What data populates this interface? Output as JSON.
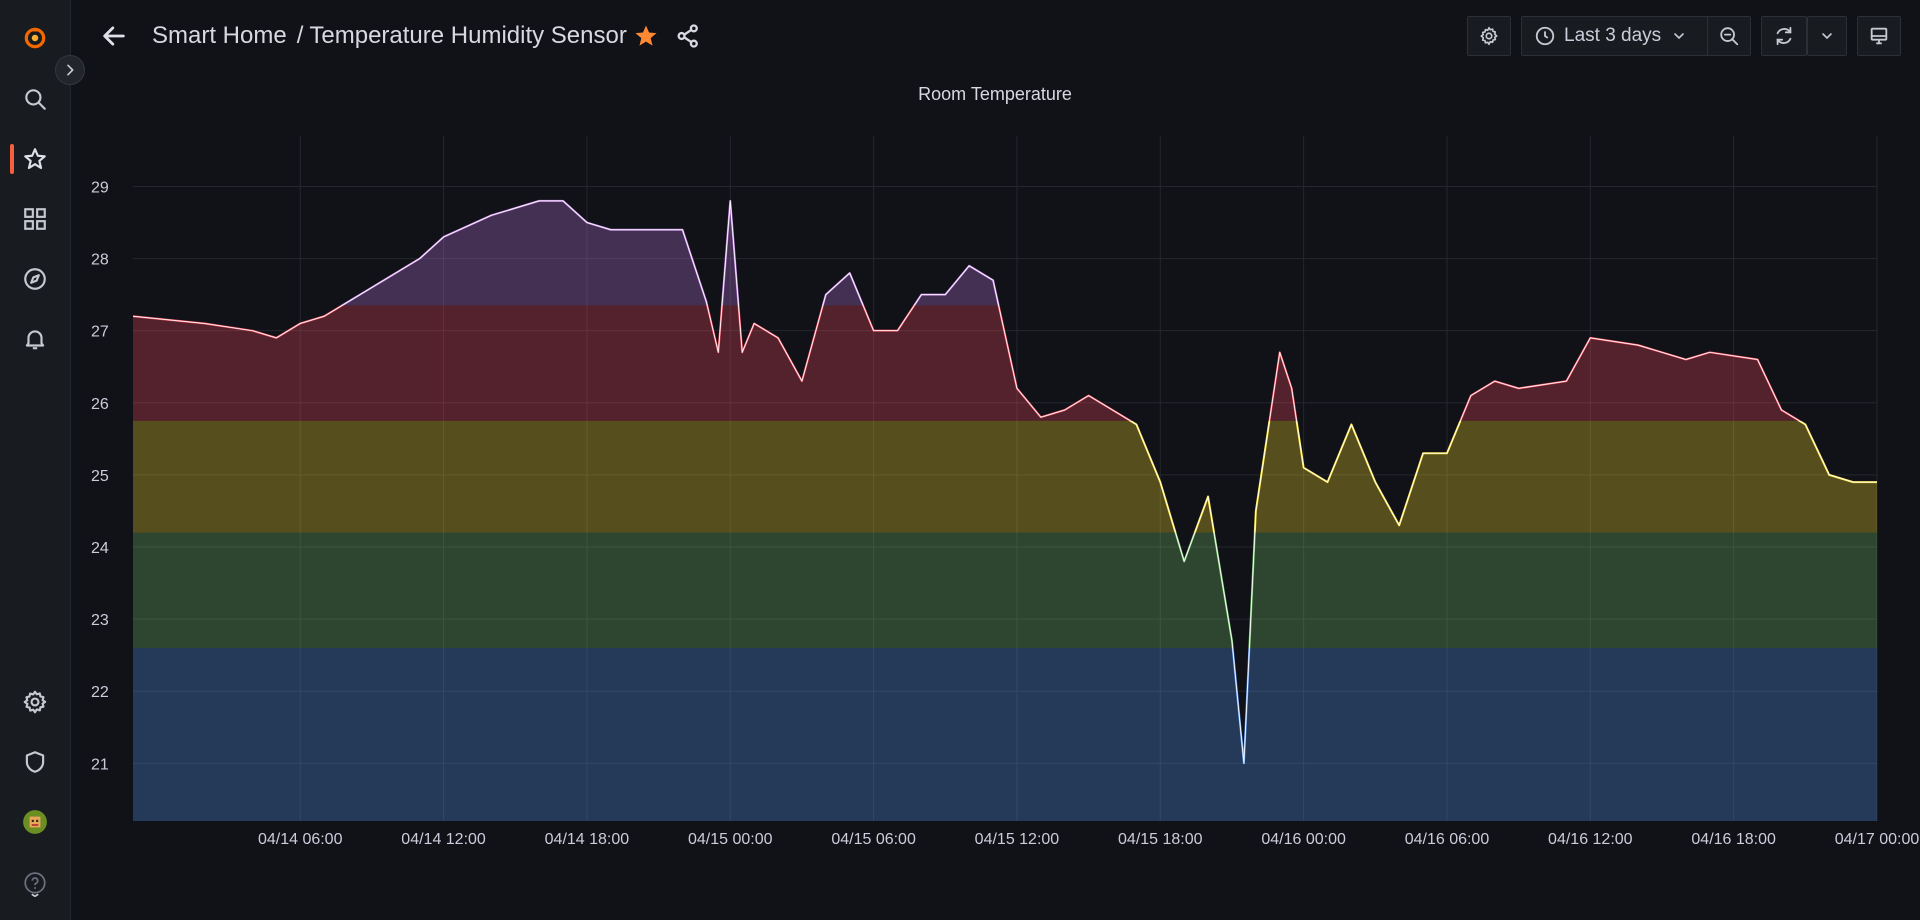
{
  "breadcrumb": {
    "folder": "Smart Home",
    "separator": "/",
    "dashboard": "Temperature Humidity Sensor"
  },
  "toolbar": {
    "time_range": "Last 3 days"
  },
  "sidebar": {
    "items": [
      {
        "icon": "grafana-logo-icon"
      },
      {
        "icon": "search-icon"
      },
      {
        "icon": "star-icon"
      },
      {
        "icon": "dashboards-grid-icon"
      },
      {
        "icon": "compass-icon"
      },
      {
        "icon": "bell-icon"
      },
      {
        "icon": "gear-icon"
      },
      {
        "icon": "shield-icon"
      },
      {
        "icon": "avatar"
      },
      {
        "icon": "help-icon"
      }
    ]
  },
  "colors": {
    "accent": "#f55f3e",
    "star": "#ff8833"
  },
  "chart_data": {
    "type": "line",
    "title": "Room Temperature",
    "x": [
      "04/13 23:00",
      "04/14 02:00",
      "04/14 04:00",
      "04/14 05:00",
      "04/14 06:00",
      "04/14 07:00",
      "04/14 09:00",
      "04/14 11:00",
      "04/14 12:00",
      "04/14 14:00",
      "04/14 16:00",
      "04/14 17:00",
      "04/14 18:00",
      "04/14 19:00",
      "04/14 22:00",
      "04/14 23:00",
      "04/14 23:30",
      "04/15 00:00",
      "04/15 00:30",
      "04/15 01:00",
      "04/15 02:00",
      "04/15 03:00",
      "04/15 04:00",
      "04/15 05:00",
      "04/15 06:00",
      "04/15 07:00",
      "04/15 08:00",
      "04/15 09:00",
      "04/15 10:00",
      "04/15 11:00",
      "04/15 12:00",
      "04/15 13:00",
      "04/15 14:00",
      "04/15 15:00",
      "04/15 17:00",
      "04/15 18:00",
      "04/15 19:00",
      "04/15 20:00",
      "04/15 21:00",
      "04/15 21:30",
      "04/15 22:00",
      "04/15 23:00",
      "04/15 23:30",
      "04/16 00:00",
      "04/16 01:00",
      "04/16 02:00",
      "04/16 03:00",
      "04/16 04:00",
      "04/16 05:00",
      "04/16 06:00",
      "04/16 07:00",
      "04/16 08:00",
      "04/16 09:00",
      "04/16 11:00",
      "04/16 12:00",
      "04/16 14:00",
      "04/16 16:00",
      "04/16 17:00",
      "04/16 19:00",
      "04/16 20:00",
      "04/16 21:00",
      "04/16 22:00",
      "04/16 23:00",
      "04/17 00:00"
    ],
    "y": [
      27.2,
      27.1,
      27.0,
      26.9,
      27.1,
      27.2,
      27.6,
      28.0,
      28.3,
      28.6,
      28.8,
      28.8,
      28.5,
      28.4,
      28.4,
      27.4,
      26.7,
      28.8,
      26.7,
      27.1,
      26.9,
      26.3,
      27.5,
      27.8,
      27.0,
      27.0,
      27.5,
      27.5,
      27.9,
      27.7,
      26.2,
      25.8,
      25.9,
      26.1,
      25.7,
      24.9,
      23.8,
      24.7,
      22.7,
      21.0,
      24.5,
      26.7,
      26.2,
      25.1,
      24.9,
      25.7,
      24.9,
      24.3,
      25.3,
      25.3,
      26.1,
      26.3,
      26.2,
      26.3,
      26.9,
      26.8,
      26.6,
      26.7,
      26.6,
      25.9,
      25.7,
      25.0,
      24.9,
      24.9
    ],
    "ylim": [
      20.2,
      29.7
    ],
    "xlim": [
      "04/13 23:00",
      "04/17 00:00"
    ],
    "x_ticks": [
      "04/14 06:00",
      "04/14 12:00",
      "04/14 18:00",
      "04/15 00:00",
      "04/15 06:00",
      "04/15 12:00",
      "04/15 18:00",
      "04/16 00:00",
      "04/16 06:00",
      "04/16 12:00",
      "04/16 18:00",
      "04/17 00:00"
    ],
    "y_ticks": [
      21,
      22,
      23,
      24,
      25,
      26,
      27,
      28,
      29
    ],
    "thresholds": [
      {
        "from": 20.2,
        "to": 22.6,
        "color": "#5794f2"
      },
      {
        "from": 22.6,
        "to": 24.2,
        "color": "#73bf69"
      },
      {
        "from": 24.2,
        "to": 25.75,
        "color": "#fade2a"
      },
      {
        "from": 25.75,
        "to": 27.35,
        "color": "#f2495c"
      },
      {
        "from": 27.35,
        "to": 29.7,
        "color": "#b877d9"
      }
    ],
    "grid": true
  }
}
